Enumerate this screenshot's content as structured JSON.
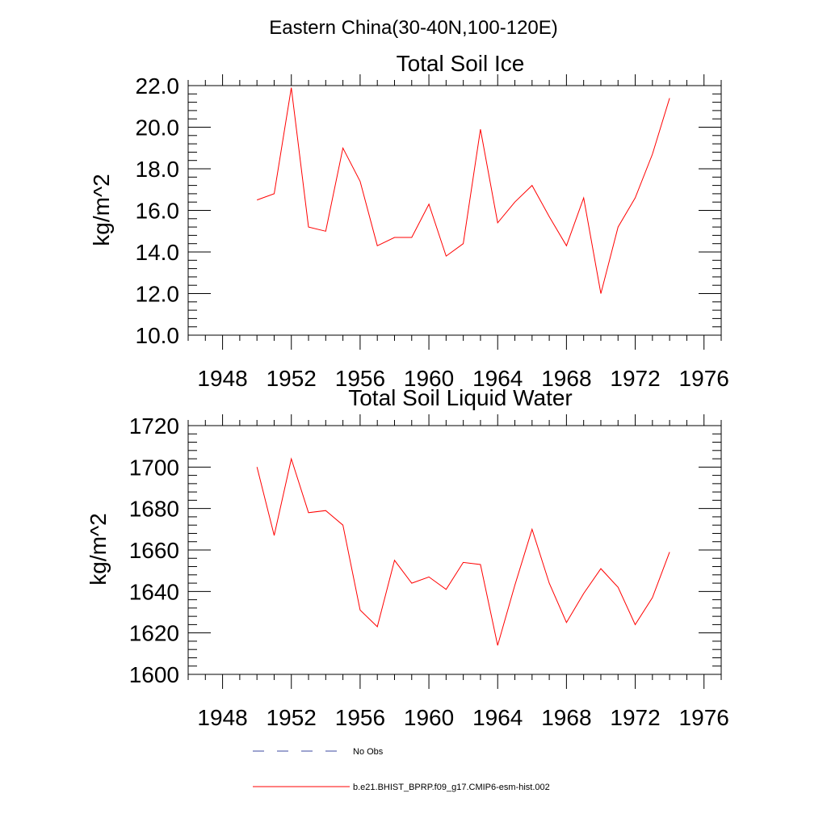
{
  "figure": {
    "title": "Eastern China(30-40N,100-120E)"
  },
  "chart_data": [
    {
      "type": "line",
      "title": "Total Soil Ice",
      "xlabel": "",
      "ylabel": "kg/m^2",
      "xlim": [
        1946,
        1977
      ],
      "ylim": [
        10.0,
        22.0
      ],
      "x_ticks": [
        1948,
        1952,
        1956,
        1960,
        1964,
        1968,
        1972,
        1976
      ],
      "y_ticks": [
        10.0,
        12.0,
        14.0,
        16.0,
        18.0,
        20.0,
        22.0
      ],
      "y_tick_decimals": 1,
      "x_minor_step": 1,
      "y_minor_step": 0.4,
      "series": [
        {
          "name": "b.e21.BHIST_BPRP.f09_g17.CMIP6-esm-hist.002",
          "color": "#ff0000",
          "x": [
            1950,
            1951,
            1952,
            1953,
            1954,
            1955,
            1956,
            1957,
            1958,
            1959,
            1960,
            1961,
            1962,
            1963,
            1964,
            1965,
            1966,
            1967,
            1968,
            1969,
            1970,
            1971,
            1972,
            1973,
            1974
          ],
          "y": [
            16.5,
            16.8,
            21.9,
            15.2,
            15.0,
            19.0,
            17.4,
            14.3,
            14.7,
            14.7,
            16.3,
            13.8,
            14.4,
            19.9,
            15.4,
            16.4,
            17.2,
            15.7,
            14.3,
            16.6,
            12.0,
            15.2,
            16.6,
            18.7,
            21.4
          ]
        }
      ]
    },
    {
      "type": "line",
      "title": "Total Soil Liquid Water",
      "xlabel": "",
      "ylabel": "kg/m^2",
      "xlim": [
        1946,
        1977
      ],
      "ylim": [
        1600,
        1720
      ],
      "x_ticks": [
        1948,
        1952,
        1956,
        1960,
        1964,
        1968,
        1972,
        1976
      ],
      "y_ticks": [
        1600,
        1620,
        1640,
        1660,
        1680,
        1700,
        1720
      ],
      "y_tick_decimals": 0,
      "x_minor_step": 1,
      "y_minor_step": 4,
      "series": [
        {
          "name": "b.e21.BHIST_BPRP.f09_g17.CMIP6-esm-hist.002",
          "color": "#ff0000",
          "x": [
            1950,
            1951,
            1952,
            1953,
            1954,
            1955,
            1956,
            1957,
            1958,
            1959,
            1960,
            1961,
            1962,
            1963,
            1964,
            1965,
            1966,
            1967,
            1968,
            1969,
            1970,
            1971,
            1972,
            1973,
            1974
          ],
          "y": [
            1700,
            1667,
            1704,
            1678,
            1679,
            1672,
            1631,
            1623,
            1655,
            1644,
            1647,
            1641,
            1654,
            1653,
            1614,
            1643,
            1670,
            1644,
            1625,
            1639,
            1651,
            1642,
            1624,
            1637,
            1659
          ]
        }
      ]
    }
  ],
  "legend": {
    "placement": "bottom-center",
    "entries": [
      {
        "label": "No Obs",
        "color": "#3b4aa0",
        "style": "dashed"
      },
      {
        "label": "b.e21.BHIST_BPRP.f09_g17.CMIP6-esm-hist.002",
        "color": "#ff0000",
        "style": "solid"
      }
    ]
  }
}
